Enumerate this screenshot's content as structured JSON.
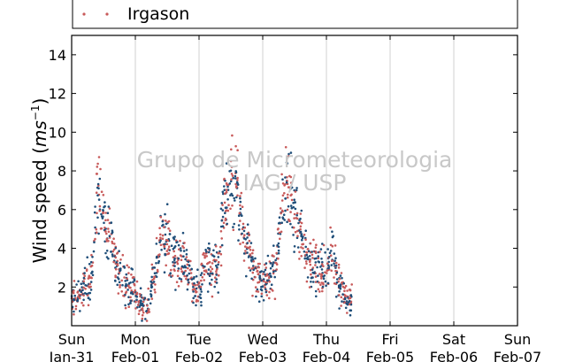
{
  "chart_data": {
    "type": "scatter",
    "ylabel": "Wind speed (",
    "ylabel_unit_base": "ms",
    "ylabel_unit_exp": "−1",
    "ylabel_close": ")",
    "ylim": [
      0,
      15
    ],
    "yticks": [
      2,
      4,
      6,
      8,
      10,
      12,
      14
    ],
    "xlim": [
      0,
      7
    ],
    "xticks": [
      {
        "day": "Sun",
        "date": "Jan-31"
      },
      {
        "day": "Mon",
        "date": "Feb-01"
      },
      {
        "day": "Tue",
        "date": "Feb-02"
      },
      {
        "day": "Wed",
        "date": "Feb-03"
      },
      {
        "day": "Thu",
        "date": "Feb-04"
      },
      {
        "day": "Fri",
        "date": "Feb-05"
      },
      {
        "day": "Sat",
        "date": "Feb-06"
      },
      {
        "day": "Sun",
        "date": "Feb-07"
      }
    ],
    "grid": "vertical",
    "legend": {
      "placement": "top",
      "entries": [
        "Irgason"
      ]
    },
    "watermark": [
      "Grupo de Micrometeorologia",
      "IAG / USP"
    ],
    "series": [
      {
        "name": "Irgason",
        "colors": [
          "#c85a5a",
          "#1f4e79"
        ],
        "x": [
          0.0,
          0.1,
          0.2,
          0.3,
          0.4,
          0.5,
          0.6,
          0.7,
          0.8,
          0.9,
          1.0,
          1.1,
          1.2,
          1.3,
          1.4,
          1.5,
          1.6,
          1.7,
          1.8,
          1.9,
          2.0,
          2.1,
          2.2,
          2.3,
          2.4,
          2.5,
          2.6,
          2.7,
          2.8,
          2.9,
          3.0,
          3.1,
          3.2,
          3.3,
          3.4,
          3.5,
          3.6,
          3.7,
          3.8,
          3.9,
          4.0,
          4.1,
          4.2,
          4.3,
          4.4
        ],
        "y": [
          1.5,
          1.4,
          2.2,
          2.4,
          6.5,
          5.5,
          5.0,
          3.2,
          2.3,
          1.9,
          1.8,
          0.9,
          1.1,
          2.6,
          4.5,
          4.2,
          3.5,
          3.4,
          3.2,
          2.0,
          1.7,
          3.3,
          3.0,
          2.9,
          6.5,
          7.0,
          6.8,
          4.6,
          3.5,
          2.5,
          2.1,
          2.4,
          3.0,
          6.5,
          7.2,
          6.0,
          4.4,
          3.6,
          3.2,
          2.8,
          2.6,
          3.8,
          2.2,
          1.5,
          1.2
        ]
      }
    ]
  }
}
